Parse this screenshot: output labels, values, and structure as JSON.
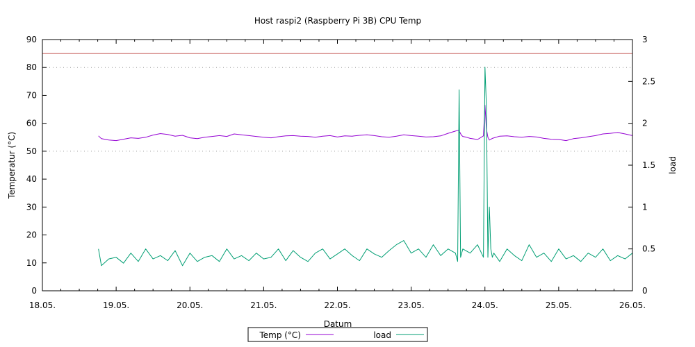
{
  "chart_data": {
    "type": "line",
    "title": "Host raspi2 (Raspberry Pi 3B) CPU Temp",
    "xlabel": "Datum",
    "ylabel": "Temperatur (°C)",
    "y2label": "load",
    "x_range": [
      "18.05.",
      "26.05."
    ],
    "x_ticks": [
      "18.05.",
      "19.05.",
      "20.05.",
      "21.05.",
      "22.05.",
      "23.05.",
      "24.05.",
      "25.05.",
      "26.05."
    ],
    "ylim": [
      0,
      90
    ],
    "y_ticks": [
      "0",
      "10",
      "20",
      "30",
      "40",
      "50",
      "60",
      "70",
      "80",
      "90"
    ],
    "y2lim": [
      0,
      3
    ],
    "y2_ticks": [
      "0",
      "0.5",
      "1",
      "1.5",
      "2",
      "2.5",
      "3"
    ],
    "grid_y": [
      50,
      80
    ],
    "threshold": {
      "value": 85,
      "color": "#c0504d"
    },
    "legend_position": "bottom-center",
    "series": [
      {
        "name": "Temp (°C)",
        "axis": "left",
        "color": "#9400d3",
        "x_days": [
          0.76,
          0.8,
          0.9,
          1.0,
          1.1,
          1.2,
          1.3,
          1.4,
          1.5,
          1.6,
          1.7,
          1.8,
          1.9,
          2.0,
          2.1,
          2.2,
          2.3,
          2.4,
          2.5,
          2.6,
          2.7,
          2.8,
          2.9,
          3.0,
          3.1,
          3.2,
          3.3,
          3.4,
          3.5,
          3.6,
          3.7,
          3.8,
          3.9,
          4.0,
          4.1,
          4.2,
          4.3,
          4.4,
          4.5,
          4.6,
          4.7,
          4.8,
          4.9,
          5.0,
          5.1,
          5.2,
          5.3,
          5.4,
          5.5,
          5.6,
          5.64,
          5.66,
          5.68,
          5.7,
          5.75,
          5.8,
          5.9,
          5.98,
          6.0,
          6.02,
          6.04,
          6.06,
          6.1,
          6.2,
          6.3,
          6.4,
          6.5,
          6.6,
          6.7,
          6.8,
          6.9,
          7.0,
          7.1,
          7.2,
          7.3,
          7.4,
          7.5,
          7.6,
          7.7,
          7.8,
          7.9,
          8.0
        ],
        "values": [
          55.5,
          54.5,
          54.0,
          53.8,
          54.3,
          54.8,
          54.6,
          55.0,
          55.8,
          56.3,
          56.0,
          55.4,
          55.7,
          54.8,
          54.5,
          55.0,
          55.3,
          55.6,
          55.3,
          56.2,
          55.9,
          55.6,
          55.3,
          55.0,
          54.8,
          55.2,
          55.5,
          55.6,
          55.4,
          55.3,
          55.0,
          55.4,
          55.6,
          55.1,
          55.5,
          55.4,
          55.7,
          55.9,
          55.6,
          55.2,
          55.0,
          55.4,
          55.9,
          55.6,
          55.4,
          55.1,
          55.2,
          55.5,
          56.4,
          57.2,
          57.5,
          56.8,
          55.8,
          55.3,
          55.0,
          54.6,
          54.2,
          55.5,
          66.5,
          58.0,
          55.0,
          54.0,
          54.6,
          55.4,
          55.5,
          55.2,
          55.0,
          55.3,
          55.1,
          54.6,
          54.3,
          54.2,
          53.8,
          54.5,
          54.8,
          55.2,
          55.6,
          56.2,
          56.4,
          56.7,
          56.2,
          55.6
        ]
      },
      {
        "name": "load",
        "axis": "right",
        "color": "#009e73",
        "x_days": [
          0.76,
          0.8,
          0.9,
          1.0,
          1.1,
          1.2,
          1.3,
          1.4,
          1.5,
          1.6,
          1.7,
          1.8,
          1.9,
          2.0,
          2.1,
          2.2,
          2.3,
          2.4,
          2.5,
          2.6,
          2.7,
          2.8,
          2.9,
          3.0,
          3.1,
          3.2,
          3.3,
          3.4,
          3.5,
          3.6,
          3.7,
          3.8,
          3.9,
          4.0,
          4.1,
          4.2,
          4.3,
          4.4,
          4.5,
          4.6,
          4.7,
          4.8,
          4.9,
          5.0,
          5.1,
          5.2,
          5.3,
          5.4,
          5.5,
          5.6,
          5.63,
          5.65,
          5.67,
          5.7,
          5.8,
          5.9,
          5.98,
          6.0,
          6.02,
          6.04,
          6.06,
          6.08,
          6.1,
          6.12,
          6.2,
          6.3,
          6.4,
          6.5,
          6.6,
          6.7,
          6.8,
          6.9,
          7.0,
          7.1,
          7.2,
          7.3,
          7.4,
          7.5,
          7.6,
          7.7,
          7.8,
          7.9,
          8.0
        ],
        "values": [
          0.5,
          0.3,
          0.38,
          0.4,
          0.33,
          0.45,
          0.35,
          0.5,
          0.38,
          0.42,
          0.36,
          0.48,
          0.3,
          0.45,
          0.35,
          0.4,
          0.42,
          0.35,
          0.5,
          0.38,
          0.42,
          0.36,
          0.45,
          0.38,
          0.4,
          0.5,
          0.36,
          0.48,
          0.4,
          0.35,
          0.45,
          0.5,
          0.38,
          0.44,
          0.5,
          0.42,
          0.36,
          0.5,
          0.44,
          0.4,
          0.48,
          0.55,
          0.6,
          0.45,
          0.5,
          0.4,
          0.55,
          0.42,
          0.5,
          0.45,
          0.35,
          2.4,
          0.4,
          0.5,
          0.45,
          0.55,
          0.4,
          2.67,
          2.2,
          0.4,
          1.0,
          0.5,
          0.4,
          0.45,
          0.35,
          0.5,
          0.42,
          0.36,
          0.55,
          0.4,
          0.45,
          0.35,
          0.5,
          0.38,
          0.42,
          0.35,
          0.45,
          0.4,
          0.5,
          0.36,
          0.42,
          0.38,
          0.45
        ]
      }
    ]
  }
}
